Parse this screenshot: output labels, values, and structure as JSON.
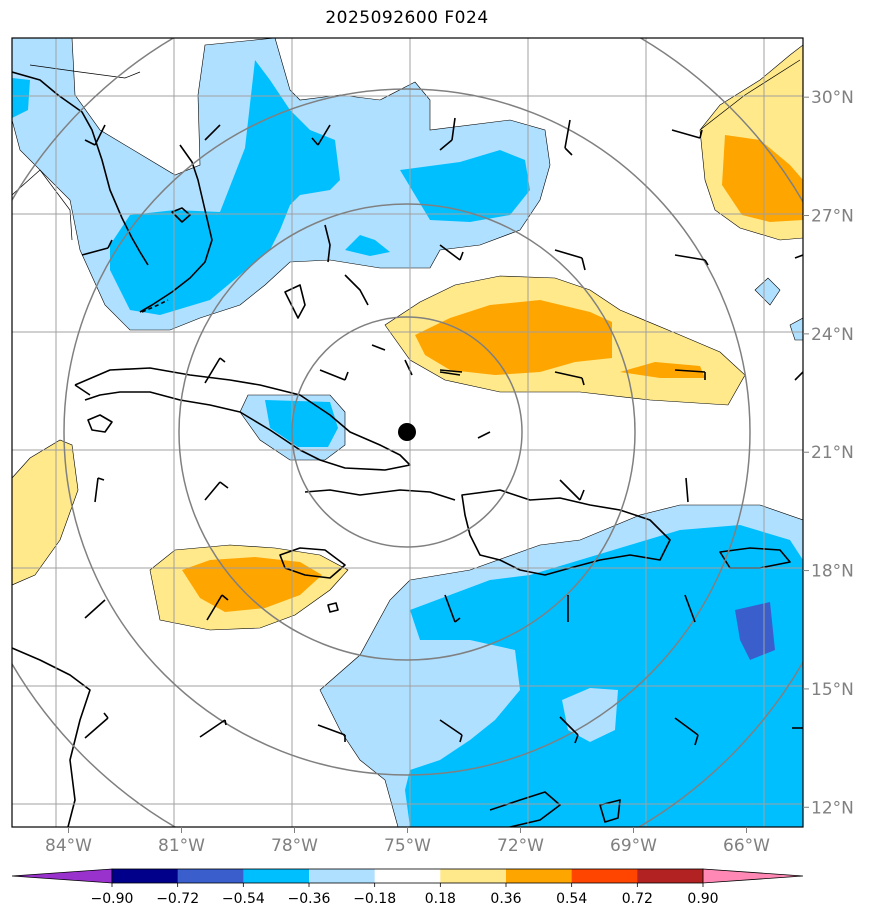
{
  "title": "2025092600 F024",
  "map": {
    "lon_range": [
      -85.5,
      -64.5
    ],
    "lat_range": [
      11.5,
      31.5
    ],
    "center_marker": {
      "lon": -75.0,
      "lat": 21.5
    },
    "range_rings_deg": [
      3,
      6,
      9,
      12
    ],
    "lon_ticks": [
      {
        "value": -84,
        "label": "84°W"
      },
      {
        "value": -81,
        "label": "81°W"
      },
      {
        "value": -78,
        "label": "78°W"
      },
      {
        "value": -75,
        "label": "75°W"
      },
      {
        "value": -72,
        "label": "72°W"
      },
      {
        "value": -69,
        "label": "69°W"
      },
      {
        "value": -66,
        "label": "66°W"
      }
    ],
    "lat_ticks": [
      {
        "value": 30,
        "label": "30°N"
      },
      {
        "value": 27,
        "label": "27°N"
      },
      {
        "value": 24,
        "label": "24°N"
      },
      {
        "value": 21,
        "label": "21°N"
      },
      {
        "value": 18,
        "label": "18°N"
      },
      {
        "value": 15,
        "label": "15°N"
      },
      {
        "value": 12,
        "label": "12°N"
      }
    ],
    "gridlines": true
  },
  "colorbar": {
    "levels": [
      -0.9,
      -0.72,
      -0.54,
      -0.36,
      -0.18,
      0.18,
      0.36,
      0.54,
      0.72,
      0.9
    ],
    "labels": [
      "−0.90",
      "−0.72",
      "−0.54",
      "−0.36",
      "−0.18",
      "0.18",
      "0.36",
      "0.54",
      "0.72",
      "0.90"
    ],
    "colors": [
      "#9932cc",
      "#00008b",
      "#3a5fcd",
      "#00bfff",
      "#b0e0ff",
      "#ffffff",
      "#ffe98a",
      "#ffa500",
      "#ff4500",
      "#b22222",
      "#ff89b4"
    ]
  },
  "colors": {
    "light_blue": "#b0e0ff",
    "blue": "#00bfff",
    "royal_blue": "#3a5fcd",
    "yellow": "#ffe98a",
    "orange": "#ffa500",
    "grid": "#a0a0a0",
    "ring": "#808080",
    "coast": "#000000"
  }
}
